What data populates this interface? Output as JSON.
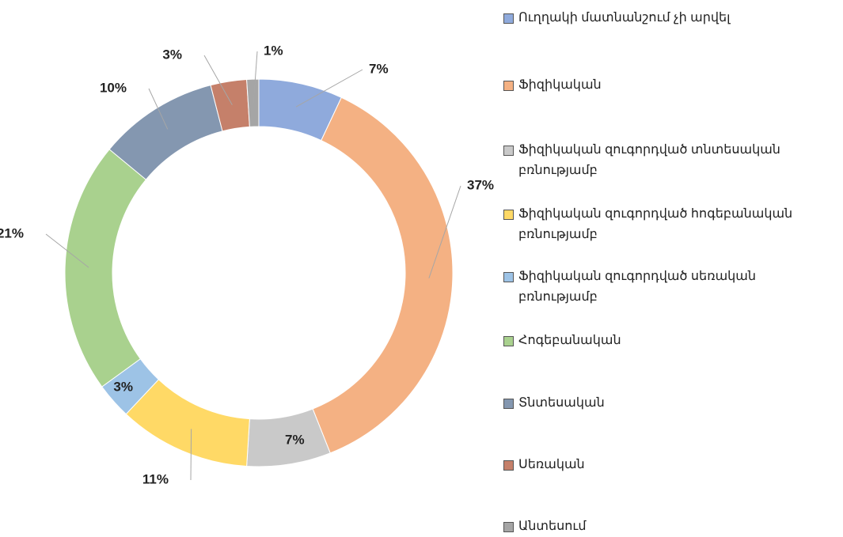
{
  "chart_data": {
    "type": "donut",
    "categories": [
      "Ուղղակի մատնանշում չի արվել",
      "Ֆիզիկական",
      "Ֆիզիկական զուգորդված տնտեսական բռնությամբ",
      "Ֆիզիկական զուգորդված հոգեբանական բռնությամբ",
      "Ֆիզիկական զուգորդված սեռական բռնությամբ",
      "Հոգեբանական",
      "Տնտեսական",
      "Սեռական",
      "Անտեսում"
    ],
    "values": [
      7,
      37,
      7,
      11,
      3,
      21,
      10,
      3,
      1
    ],
    "value_labels": [
      "7%",
      "37%",
      "7%",
      "11%",
      "3%",
      "21%",
      "10%",
      "3%",
      "1%"
    ],
    "colors": [
      "#8faadc",
      "#f4b183",
      "#c9c9c9",
      "#ffd966",
      "#9dc3e6",
      "#a9d18e",
      "#8497b0",
      "#c5806a",
      "#a5a5a5"
    ],
    "legend": "right"
  }
}
